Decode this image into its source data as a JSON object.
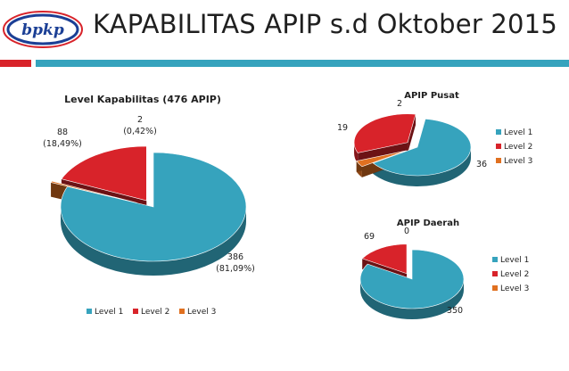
{
  "slide": {
    "title": "KAPABILITAS APIP s.d Oktober 2015",
    "logo_text": "bpkp"
  },
  "colors": {
    "level1": "#36a3bd",
    "level2": "#d8232a",
    "level3": "#e07020",
    "accent_red": "#d8232a",
    "accent_teal": "#36a3bd"
  },
  "chart_data": [
    {
      "type": "pie",
      "title": "Level Kapabilitas (476 APIP)",
      "categories": [
        "Level 1",
        "Level 2",
        "Level 3"
      ],
      "values": [
        386,
        88,
        2
      ],
      "percent_labels": [
        "(81,09%)",
        "(18,49%)",
        "(0,42%)"
      ],
      "legend": [
        "Level 1",
        "Level 2",
        "Level 3"
      ],
      "legend_position": "bottom"
    },
    {
      "type": "pie",
      "title": "APIP Pusat",
      "categories": [
        "Level 1",
        "Level 2",
        "Level 3"
      ],
      "values": [
        36,
        19,
        2
      ],
      "legend": [
        "Level 1",
        "Level 2",
        "Level 3"
      ],
      "legend_position": "right"
    },
    {
      "type": "pie",
      "title": "APIP Daerah",
      "categories": [
        "Level 1",
        "Level 2",
        "Level 3"
      ],
      "values": [
        350,
        69,
        0
      ],
      "legend": [
        "Level 1",
        "Level 2",
        "Level 3"
      ],
      "legend_position": "right"
    }
  ]
}
